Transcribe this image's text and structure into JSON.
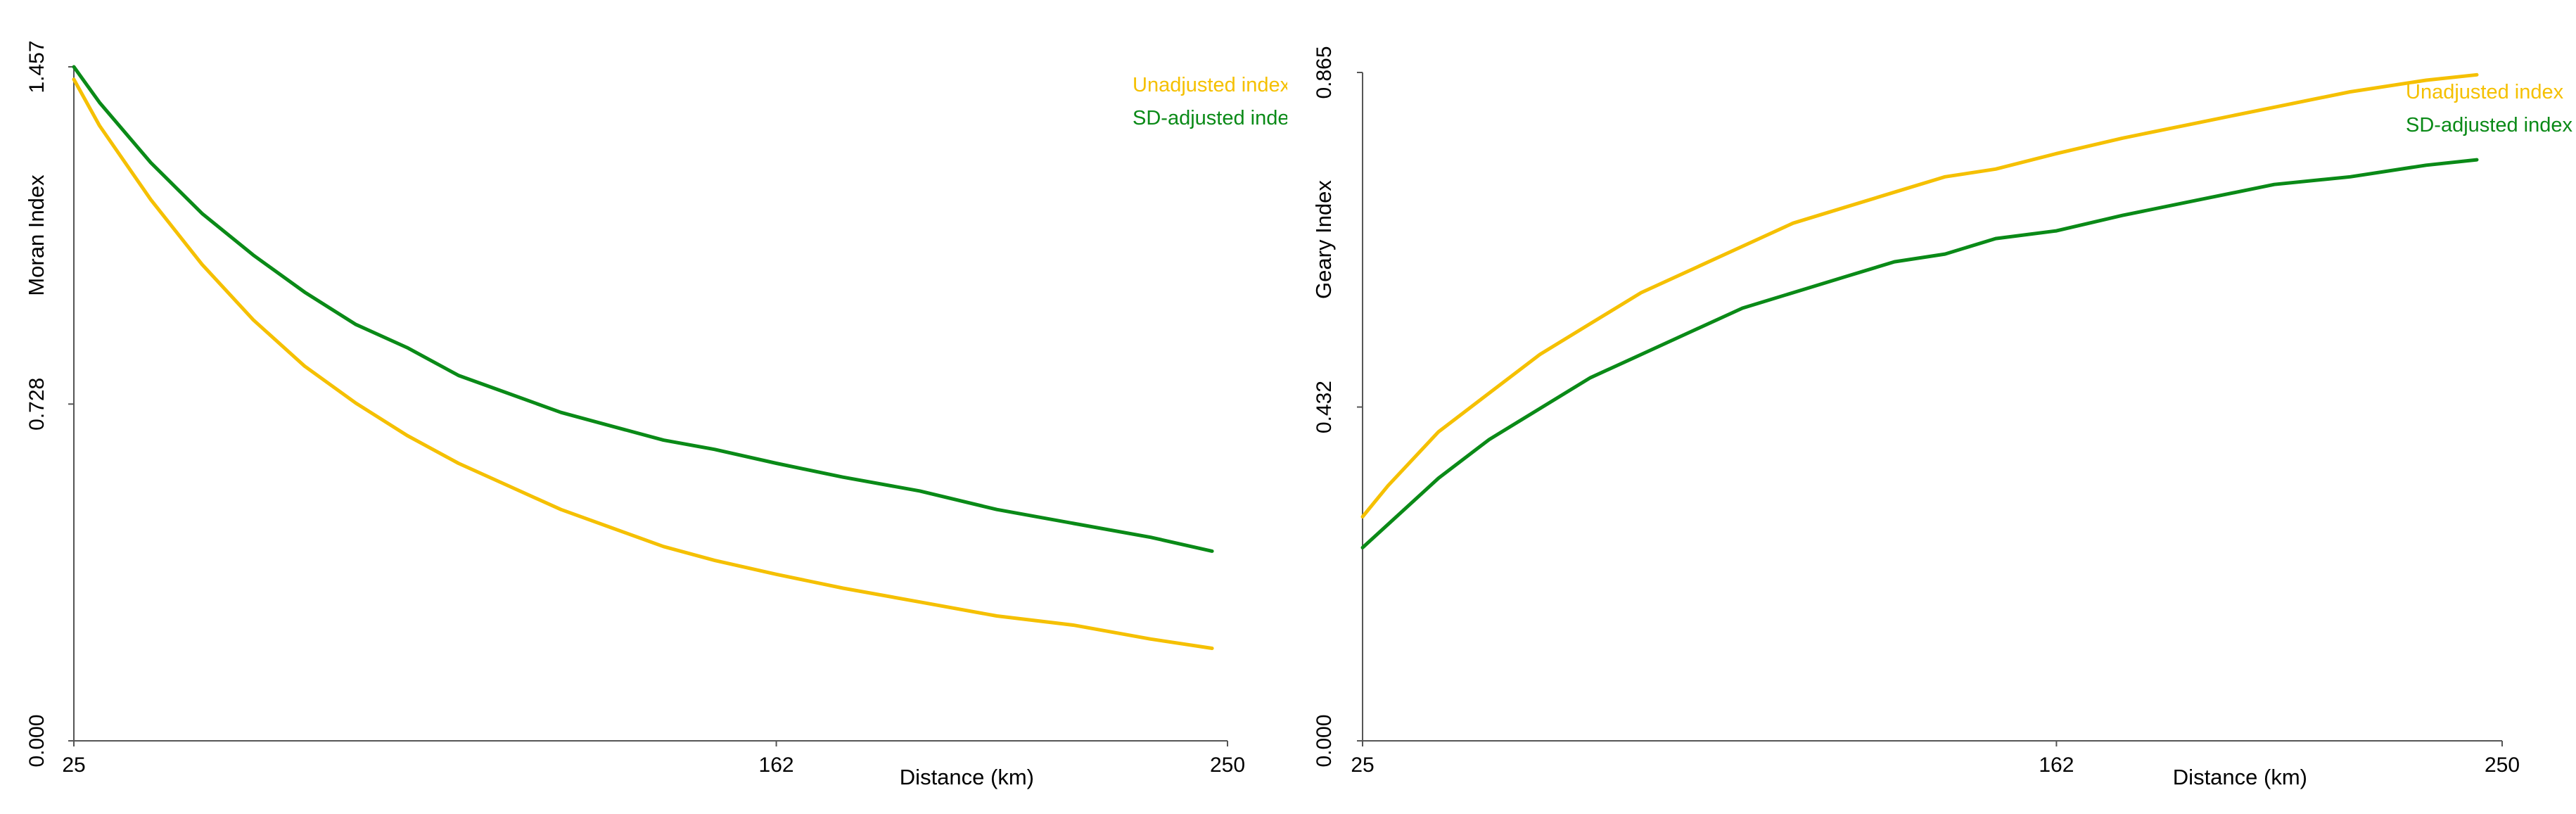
{
  "colors": {
    "unadjusted": "#F5C000",
    "sd_adjusted": "#0A8A17",
    "axis": "#555555",
    "text": "#000000"
  },
  "chart_data": [
    {
      "type": "line",
      "title": "",
      "xlabel": "Distance (km)",
      "ylabel": "Moran Index",
      "xlim": [
        25,
        250
      ],
      "ylim": [
        0.0,
        1.457
      ],
      "x_ticks": [
        "25",
        "162",
        "250"
      ],
      "y_ticks": [
        "0.000",
        "0.728",
        "1.457"
      ],
      "legend_position": "top-right",
      "series": [
        {
          "name": "Unadjusted index",
          "color_key": "unadjusted",
          "x": [
            25,
            30,
            40,
            50,
            60,
            70,
            80,
            90,
            100,
            110,
            120,
            130,
            140,
            150,
            162,
            175,
            190,
            205,
            220,
            235,
            247
          ],
          "y": [
            1.43,
            1.33,
            1.17,
            1.03,
            0.91,
            0.81,
            0.73,
            0.66,
            0.6,
            0.55,
            0.5,
            0.46,
            0.42,
            0.39,
            0.36,
            0.33,
            0.3,
            0.27,
            0.25,
            0.22,
            0.2
          ]
        },
        {
          "name": "SD-adjusted index",
          "color_key": "sd_adjusted",
          "x": [
            25,
            30,
            40,
            50,
            60,
            70,
            80,
            90,
            100,
            110,
            120,
            130,
            140,
            150,
            162,
            175,
            190,
            205,
            220,
            235,
            247
          ],
          "y": [
            1.457,
            1.38,
            1.25,
            1.14,
            1.05,
            0.97,
            0.9,
            0.85,
            0.79,
            0.75,
            0.71,
            0.68,
            0.65,
            0.63,
            0.6,
            0.57,
            0.54,
            0.5,
            0.47,
            0.44,
            0.41
          ]
        }
      ]
    },
    {
      "type": "line",
      "title": "",
      "xlabel": "Distance (km)",
      "ylabel": "Geary Index",
      "xlim": [
        25,
        250
      ],
      "ylim": [
        0.0,
        0.865
      ],
      "x_ticks": [
        "25",
        "162",
        "250"
      ],
      "y_ticks": [
        "0.000",
        "0.432",
        "0.865"
      ],
      "legend_position": "top-right",
      "series": [
        {
          "name": "Unadjusted index",
          "color_key": "unadjusted",
          "x": [
            25,
            30,
            40,
            50,
            60,
            70,
            80,
            90,
            100,
            110,
            120,
            130,
            140,
            150,
            162,
            175,
            190,
            205,
            220,
            235,
            245
          ],
          "y": [
            0.29,
            0.33,
            0.4,
            0.45,
            0.5,
            0.54,
            0.58,
            0.61,
            0.64,
            0.67,
            0.69,
            0.71,
            0.73,
            0.74,
            0.76,
            0.78,
            0.8,
            0.82,
            0.84,
            0.855,
            0.862
          ]
        },
        {
          "name": "SD-adjusted index",
          "color_key": "sd_adjusted",
          "x": [
            25,
            30,
            40,
            50,
            60,
            70,
            80,
            90,
            100,
            110,
            120,
            130,
            140,
            150,
            162,
            175,
            190,
            205,
            220,
            235,
            245
          ],
          "y": [
            0.25,
            0.28,
            0.34,
            0.39,
            0.43,
            0.47,
            0.5,
            0.53,
            0.56,
            0.58,
            0.6,
            0.62,
            0.63,
            0.65,
            0.66,
            0.68,
            0.7,
            0.72,
            0.73,
            0.745,
            0.752
          ]
        }
      ]
    }
  ]
}
